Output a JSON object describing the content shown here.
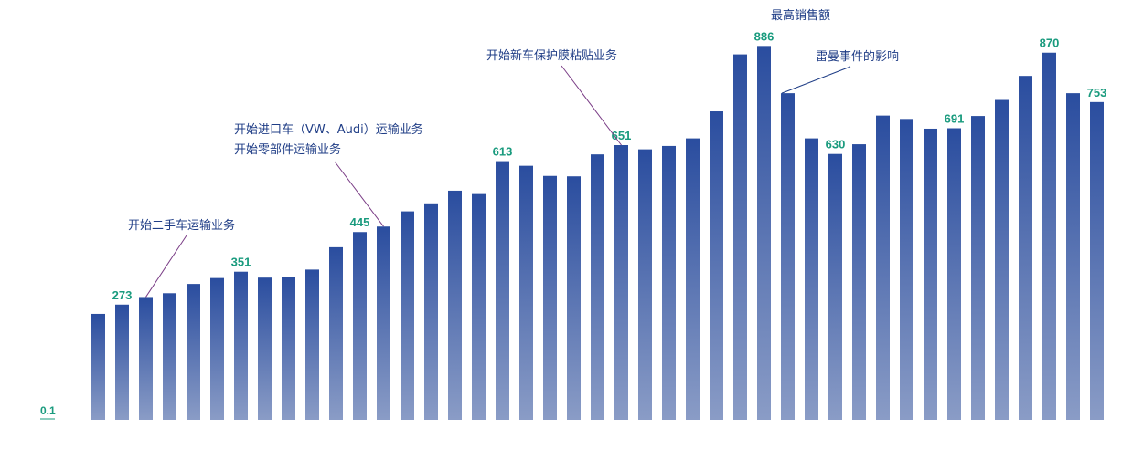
{
  "colors": {
    "bar_top": "#2a4d9f",
    "bar_bottom": "#8a9cc6",
    "value_label": "#1a9b7e",
    "annotation_text": "#1f3d86",
    "leader_line": "#7a3d86",
    "axis_label": "#1a9b7e"
  },
  "chart_data": {
    "type": "bar",
    "title": "",
    "xlabel": "",
    "ylabel": "",
    "ylim": [
      0,
      930
    ],
    "y_axis_label": "0.1",
    "grid": false,
    "values": [
      251,
      273,
      291,
      300,
      322,
      336,
      351,
      337,
      339,
      356,
      409,
      445,
      458,
      494,
      513,
      543,
      535,
      613,
      602,
      578,
      577,
      629,
      651,
      641,
      649,
      667,
      731,
      866,
      886,
      774,
      667,
      630,
      653,
      721,
      713,
      690,
      691,
      720,
      758,
      815,
      870,
      774,
      753
    ],
    "value_labels": {
      "1": "273",
      "6": "351",
      "11": "445",
      "17": "613",
      "22": "651",
      "28": "886",
      "31": "630",
      "36": "691",
      "40": "870",
      "42": "753"
    },
    "annotations": [
      {
        "lines": [
          "开始二手车运输业务"
        ],
        "bar": 2
      },
      {
        "lines": [
          "开始进口车（VW、Audi）运输业务",
          "开始零部件运输业务"
        ],
        "bar": 12
      },
      {
        "lines": [
          "开始新车保护膜粘贴业务"
        ],
        "bar": 22
      },
      {
        "lines": [
          "最高销售额"
        ],
        "bar": 28
      },
      {
        "lines": [
          "雷曼事件的影响"
        ],
        "bar": 29
      }
    ]
  }
}
